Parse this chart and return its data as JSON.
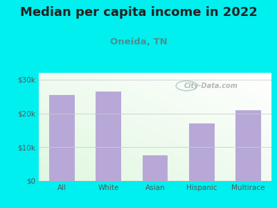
{
  "title": "Median per capita income in 2022",
  "subtitle": "Oneida, TN",
  "categories": [
    "All",
    "White",
    "Asian",
    "Hispanic",
    "Multirace"
  ],
  "values": [
    25500,
    26500,
    7500,
    17000,
    21000
  ],
  "bar_color": "#b8a8d8",
  "background_outer": "#00efef",
  "title_color": "#222222",
  "title_fontsize": 13,
  "subtitle_fontsize": 9.5,
  "subtitle_color": "#4a9090",
  "tick_color": "#555555",
  "ytick_labels": [
    "$0",
    "$10k",
    "$20k",
    "$30k"
  ],
  "ytick_values": [
    0,
    10000,
    20000,
    30000
  ],
  "ylim": [
    0,
    32000
  ],
  "watermark": "City-Data.com"
}
